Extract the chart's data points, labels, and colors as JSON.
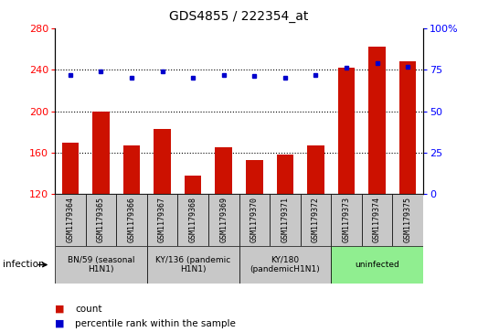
{
  "title": "GDS4855 / 222354_at",
  "samples": [
    "GSM1179364",
    "GSM1179365",
    "GSM1179366",
    "GSM1179367",
    "GSM1179368",
    "GSM1179369",
    "GSM1179370",
    "GSM1179371",
    "GSM1179372",
    "GSM1179373",
    "GSM1179374",
    "GSM1179375"
  ],
  "counts": [
    170,
    200,
    167,
    183,
    138,
    165,
    153,
    158,
    167,
    242,
    262,
    248
  ],
  "percentile_ranks": [
    72,
    74,
    70,
    74,
    70,
    72,
    71,
    70,
    72,
    76,
    79,
    77
  ],
  "groups": [
    {
      "label": "BN/59 (seasonal\nH1N1)",
      "start": 0,
      "end": 3,
      "color": "#c8c8c8"
    },
    {
      "label": "KY/136 (pandemic\nH1N1)",
      "start": 3,
      "end": 6,
      "color": "#c8c8c8"
    },
    {
      "label": "KY/180\n(pandemicH1N1)",
      "start": 6,
      "end": 9,
      "color": "#c8c8c8"
    },
    {
      "label": "uninfected",
      "start": 9,
      "end": 12,
      "color": "#90ee90"
    }
  ],
  "ylim_left": [
    120,
    280
  ],
  "ylim_right": [
    0,
    100
  ],
  "yticks_left": [
    120,
    160,
    200,
    240,
    280
  ],
  "yticks_right": [
    0,
    25,
    50,
    75,
    100
  ],
  "bar_color": "#cc1100",
  "dot_color": "#0000cc",
  "grid_lines": [
    160,
    200,
    240
  ],
  "infection_label": "infection",
  "legend_count_label": "count",
  "legend_percentile_label": "percentile rank within the sample",
  "sample_box_color": "#c8c8c8"
}
